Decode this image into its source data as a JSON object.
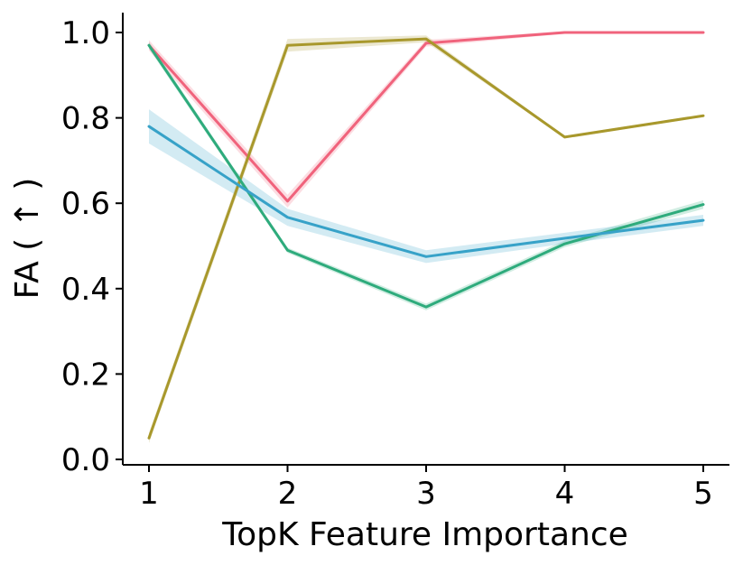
{
  "chart_data": {
    "type": "line",
    "xlabel": "TopK Feature Importance",
    "ylabel": "FA ( ↑ )",
    "x": [
      1,
      2,
      3,
      4,
      5
    ],
    "xlim": [
      0.8,
      5.2
    ],
    "ylim": [
      -0.02,
      1.05
    ],
    "yticks": [
      "0.0",
      "0.2",
      "0.4",
      "0.6",
      "0.8",
      "1.0"
    ],
    "xticks": [
      "1",
      "2",
      "3",
      "4",
      "5"
    ],
    "grid": false,
    "legend": "none",
    "series": [
      {
        "color": "#f0637c",
        "values": [
          0.97,
          0.605,
          0.975,
          1.0,
          1.0
        ],
        "band": [
          0.012,
          0.015,
          0.008,
          0.003,
          0.003
        ]
      },
      {
        "color": "#a8982c",
        "values": [
          0.05,
          0.97,
          0.985,
          0.755,
          0.805
        ],
        "band": [
          0.012,
          0.015,
          0.008,
          0.003,
          0.003
        ]
      },
      {
        "color": "#2eab7c",
        "values": [
          0.97,
          0.49,
          0.357,
          0.505,
          0.597
        ],
        "band": [
          0.008,
          0.006,
          0.008,
          0.008,
          0.01
        ]
      },
      {
        "color": "#37a2c8",
        "values": [
          0.78,
          0.567,
          0.475,
          0.518,
          0.56
        ],
        "band": [
          0.04,
          0.02,
          0.015,
          0.013,
          0.013
        ]
      }
    ]
  }
}
